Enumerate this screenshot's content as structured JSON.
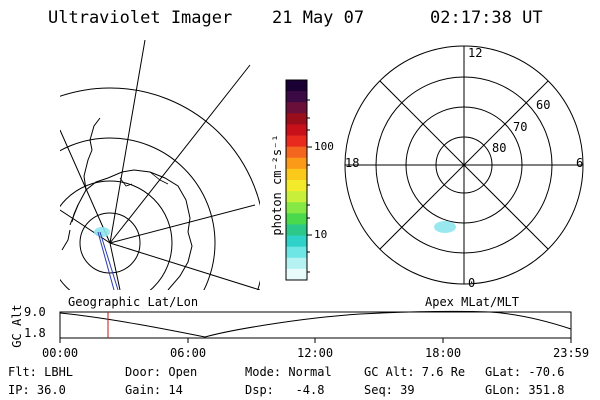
{
  "header": {
    "title": "Ultraviolet Imager",
    "date": "21 May 07",
    "time": "02:17:38 UT"
  },
  "left_panel": {
    "caption": "Geographic Lat/Lon"
  },
  "right_panel": {
    "caption": "Apex MLat/MLT",
    "mlt_labels": {
      "top": "12",
      "left": "18",
      "right": "6",
      "bottom": "0"
    },
    "lat_labels": [
      "60",
      "70",
      "80"
    ]
  },
  "colorbar": {
    "unit_label": "photon cm⁻²s⁻¹",
    "ticks": [
      "100",
      "10"
    ],
    "colors": [
      "#1a0033",
      "#3b0a45",
      "#6a0f3a",
      "#9a0d1a",
      "#c8101a",
      "#e82a1e",
      "#f4661e",
      "#fa9a18",
      "#fbc91a",
      "#f2ea2a",
      "#c8f03a",
      "#86e844",
      "#4ad84c",
      "#2cc88a",
      "#2ed2c8",
      "#6ee6e6",
      "#b6f2f2",
      "#e8fafa"
    ]
  },
  "timeline": {
    "ylabel": "GC Alt",
    "y_values": [
      "9.0",
      "1.8"
    ],
    "x_ticks": [
      "00:00",
      "06:00",
      "12:00",
      "18:00",
      "23:59"
    ],
    "marker_time": "02:17:38"
  },
  "info": {
    "row1": [
      "Flt: LBHL",
      "Door: Open",
      "Mode: Normal",
      "GC Alt: 7.6 Re",
      "GLat: -70.6"
    ],
    "row2": [
      "IP: 36.0",
      "Gain: 14",
      "Dsp:   -4.8",
      "Seq: 39",
      "GLon: 351.8"
    ]
  }
}
